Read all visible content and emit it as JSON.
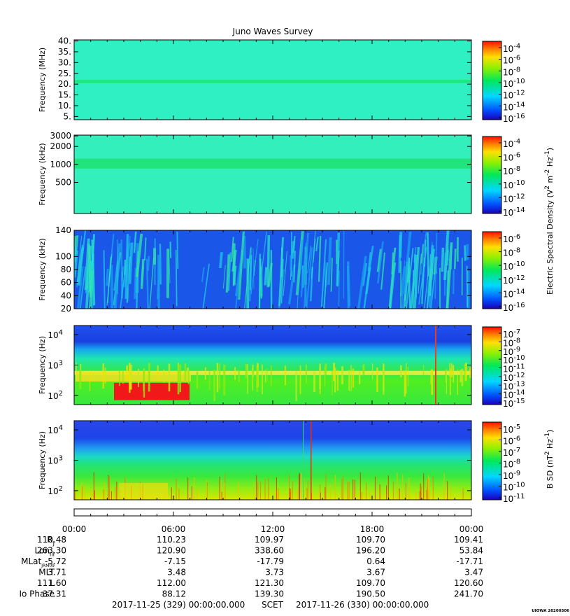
{
  "title": "Juno Waves Survey",
  "chart_data": [
    {
      "type": "heatmap",
      "ylabel": "Frequency (MHz)",
      "y_scale": "linear",
      "ylim": [
        3.5,
        40.5
      ],
      "y_ticks": [
        {
          "v": 40,
          "label": "40."
        },
        {
          "v": 35,
          "label": "35."
        },
        {
          "v": 30,
          "label": "30."
        },
        {
          "v": 25,
          "label": "25."
        },
        {
          "v": 20,
          "label": "20."
        },
        {
          "v": 15,
          "label": "15."
        },
        {
          "v": 10,
          "label": "10."
        },
        {
          "v": 5,
          "label": "5."
        }
      ],
      "bands": [
        {
          "from": 20.5,
          "to": 22,
          "color": "#1ee87a"
        }
      ],
      "base_color": "#2ff0c2",
      "colorbar": {
        "scale": "log",
        "ticks": [
          {
            "base": "10",
            "exp": "-4"
          },
          {
            "base": "10",
            "exp": "-6"
          },
          {
            "base": "10",
            "exp": "-8"
          },
          {
            "base": "10",
            "exp": "-10"
          },
          {
            "base": "10",
            "exp": "-12"
          },
          {
            "base": "10",
            "exp": "-14"
          },
          {
            "base": "10",
            "exp": "-16"
          }
        ]
      }
    },
    {
      "type": "heatmap",
      "ylabel": "Frequency (kHz)",
      "y_scale": "log",
      "ylim": [
        150,
        3100
      ],
      "y_ticks": [
        {
          "v": 3000,
          "label": "3000"
        },
        {
          "v": 2000,
          "label": "2000"
        },
        {
          "v": 1000,
          "label": "1000"
        },
        {
          "v": 500,
          "label": "500"
        }
      ],
      "bands": [
        {
          "from": 850,
          "to": 1250,
          "color": "#22e47c"
        }
      ],
      "base_color": "#33efbc",
      "colorbar": {
        "scale": "log",
        "ticks": [
          {
            "base": "10",
            "exp": "-4"
          },
          {
            "base": "10",
            "exp": "-6"
          },
          {
            "base": "10",
            "exp": "-8"
          },
          {
            "base": "10",
            "exp": "-10"
          },
          {
            "base": "10",
            "exp": "-12"
          },
          {
            "base": "10",
            "exp": "-14"
          }
        ]
      }
    },
    {
      "type": "heatmap",
      "ylabel": "Frequency (kHz)",
      "y_scale": "linear",
      "ylim": [
        20,
        140
      ],
      "y_ticks": [
        {
          "v": 140,
          "label": "140"
        },
        {
          "v": 100,
          "label": "100"
        },
        {
          "v": 80,
          "label": "80"
        },
        {
          "v": 60,
          "label": "60"
        },
        {
          "v": 40,
          "label": "40"
        },
        {
          "v": 20,
          "label": "20"
        }
      ],
      "base_color": "#1a56e8",
      "colorbar": {
        "scale": "log",
        "ticks": [
          {
            "base": "10",
            "exp": "-6"
          },
          {
            "base": "10",
            "exp": "-8"
          },
          {
            "base": "10",
            "exp": "-10"
          },
          {
            "base": "10",
            "exp": "-12"
          },
          {
            "base": "10",
            "exp": "-14"
          },
          {
            "base": "10",
            "exp": "-16"
          }
        ]
      }
    },
    {
      "type": "heatmap",
      "ylabel": "Frequency (Hz)",
      "y_scale": "log",
      "ylim": [
        50,
        20000
      ],
      "y_ticks": [
        {
          "v": 10000,
          "base": "10",
          "exp": "4"
        },
        {
          "v": 1000,
          "base": "10",
          "exp": "3"
        },
        {
          "v": 100,
          "base": "10",
          "exp": "2"
        }
      ],
      "base_color": "#1a64f0",
      "colorbar": {
        "scale": "log",
        "ticks": [
          {
            "base": "10",
            "exp": "-7"
          },
          {
            "base": "10",
            "exp": "-8"
          },
          {
            "base": "10",
            "exp": "-9"
          },
          {
            "base": "10",
            "exp": "-10"
          },
          {
            "base": "10",
            "exp": "-11"
          },
          {
            "base": "10",
            "exp": "-12"
          },
          {
            "base": "10",
            "exp": "-13"
          },
          {
            "base": "10",
            "exp": "-14"
          },
          {
            "base": "10",
            "exp": "-15"
          }
        ]
      }
    },
    {
      "type": "heatmap",
      "ylabel": "Frequency (Hz)",
      "y_scale": "log",
      "ylim": [
        50,
        20000
      ],
      "y_ticks": [
        {
          "v": 10000,
          "base": "10",
          "exp": "4"
        },
        {
          "v": 1000,
          "base": "10",
          "exp": "3"
        },
        {
          "v": 100,
          "base": "10",
          "exp": "2"
        }
      ],
      "base_color": "#2a4ff0",
      "colorbar": {
        "scale": "log",
        "ticks": [
          {
            "base": "10",
            "exp": "-5"
          },
          {
            "base": "10",
            "exp": "-6"
          },
          {
            "base": "10",
            "exp": "-7"
          },
          {
            "base": "10",
            "exp": "-8"
          },
          {
            "base": "10",
            "exp": "-9"
          },
          {
            "base": "10",
            "exp": "-10"
          },
          {
            "base": "10",
            "exp": "-11"
          }
        ]
      }
    }
  ],
  "colorbar_labels": {
    "electric": {
      "text": "Electric Spectral Density (V",
      "sup1": "2",
      "mid": " m",
      "sup2": "-2",
      "mid2": " Hz",
      "sup3": "-1",
      "end": ")"
    },
    "magnetic": {
      "text": "B SD (nT",
      "sup1": "2",
      "mid": " Hz",
      "sup2": "-1",
      "end": ")"
    }
  },
  "ephemeris": {
    "times": [
      "00:00",
      "06:00",
      "12:00",
      "18:00",
      "00:00"
    ],
    "rows": [
      {
        "label": "R",
        "sub": "J",
        "values": [
          "110.48",
          "110.23",
          "109.97",
          "109.70",
          "109.41"
        ]
      },
      {
        "label": "Lon",
        "sub": "III",
        "values": [
          "263.30",
          "120.90",
          "338.60",
          "196.20",
          "53.84"
        ]
      },
      {
        "label": "MLat",
        "sub": "JRM09",
        "values": [
          "-5.72",
          "-7.15",
          "-17.79",
          "0.64",
          "-17.71"
        ]
      },
      {
        "label": "MLT",
        "sub": "",
        "values": [
          "3.71",
          "3.48",
          "3.73",
          "3.67",
          "3.47"
        ]
      },
      {
        "label": "L",
        "sub": "",
        "values": [
          "111.60",
          "112.00",
          "121.30",
          "109.70",
          "120.60"
        ]
      },
      {
        "label": "Io Phase",
        "sub": "",
        "values": [
          "37.31",
          "88.12",
          "139.30",
          "190.50",
          "241.70"
        ]
      }
    ]
  },
  "footer": {
    "start": "2017-11-25 (329) 00:00:00.000",
    "scet": "SCET",
    "end": "2017-11-26 (330) 00:00:00.000"
  },
  "stamp": "UIOWA 20200306"
}
